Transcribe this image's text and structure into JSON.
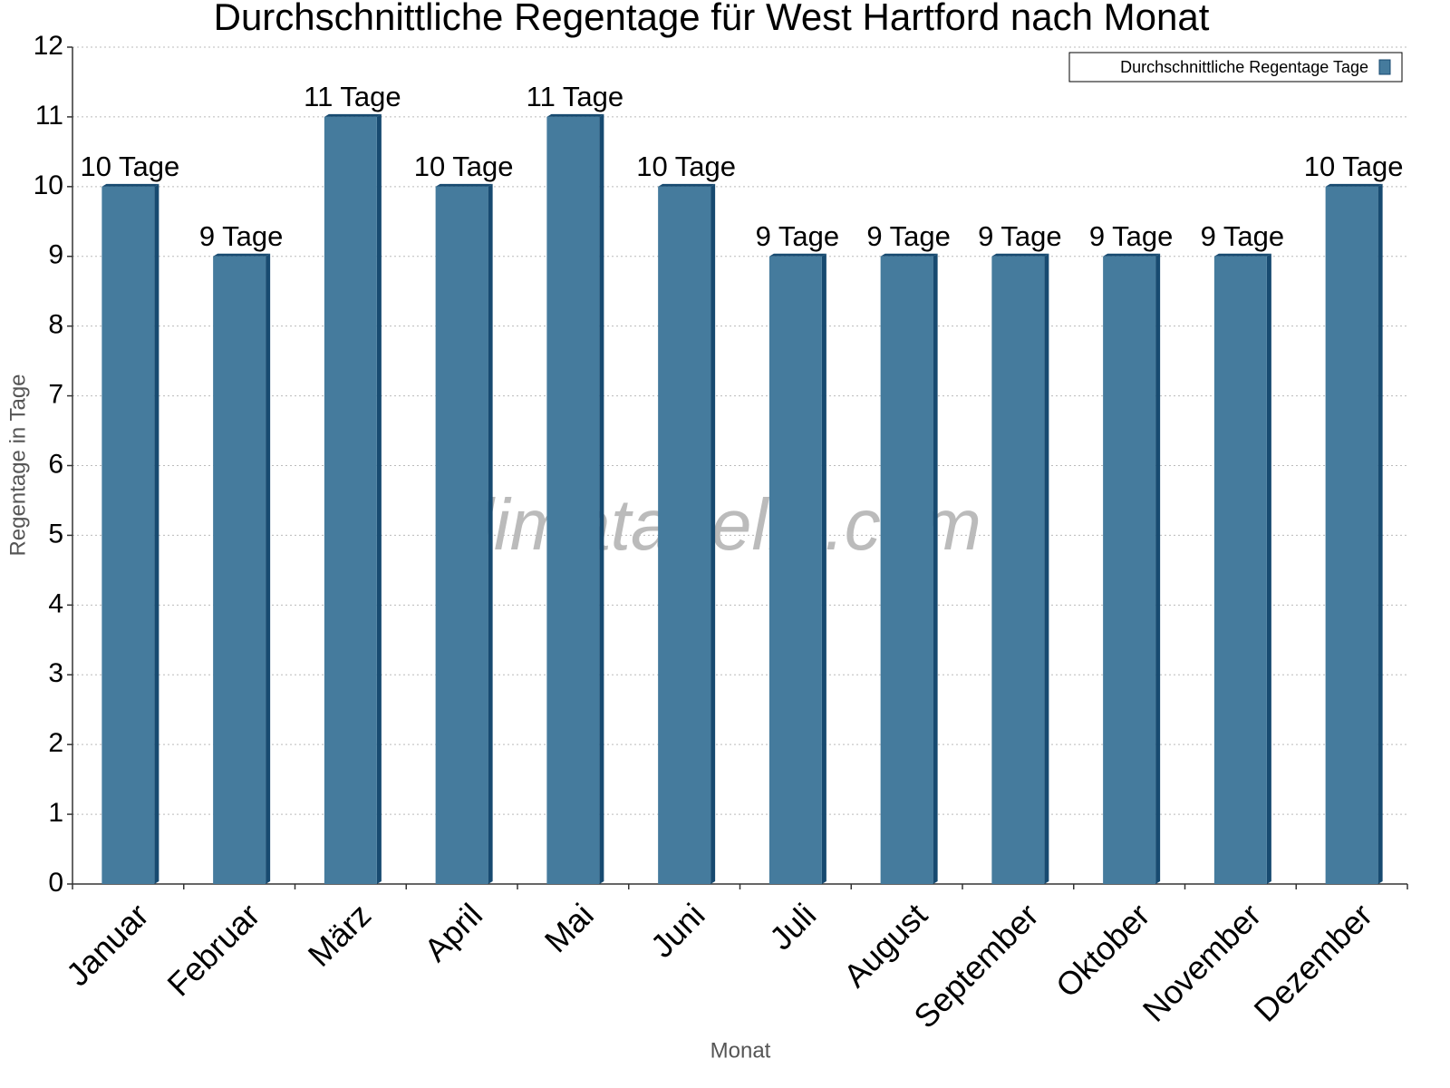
{
  "chart_data": {
    "type": "bar",
    "title": "Durchschnittliche Regentage für West Hartford nach Monat",
    "x_label": "Monat",
    "y_label": "Regentage in Tage",
    "watermark": "klimatabelle.com",
    "categories": [
      "Januar",
      "Februar",
      "März",
      "April",
      "Mai",
      "Juni",
      "Juli",
      "August",
      "September",
      "Oktober",
      "November",
      "Dezember"
    ],
    "series": [
      {
        "name": "Durchschnittliche Regentage Tage",
        "color": "#457b9d",
        "side_color": "#174a70",
        "values": [
          10,
          9,
          11,
          10,
          11,
          10,
          9,
          9,
          9,
          9,
          9,
          10
        ],
        "value_labels": [
          "10 Tage",
          "9 Tage",
          "11 Tage",
          "10 Tage",
          "11 Tage",
          "10 Tage",
          "9 Tage",
          "9 Tage",
          "9 Tage",
          "9 Tage",
          "9 Tage",
          "10 Tage"
        ]
      }
    ],
    "ylim": [
      0,
      12
    ],
    "yticks": [
      0,
      1,
      2,
      3,
      4,
      5,
      6,
      7,
      8,
      9,
      10,
      11,
      12
    ],
    "grid": true,
    "legend": "top-right"
  }
}
